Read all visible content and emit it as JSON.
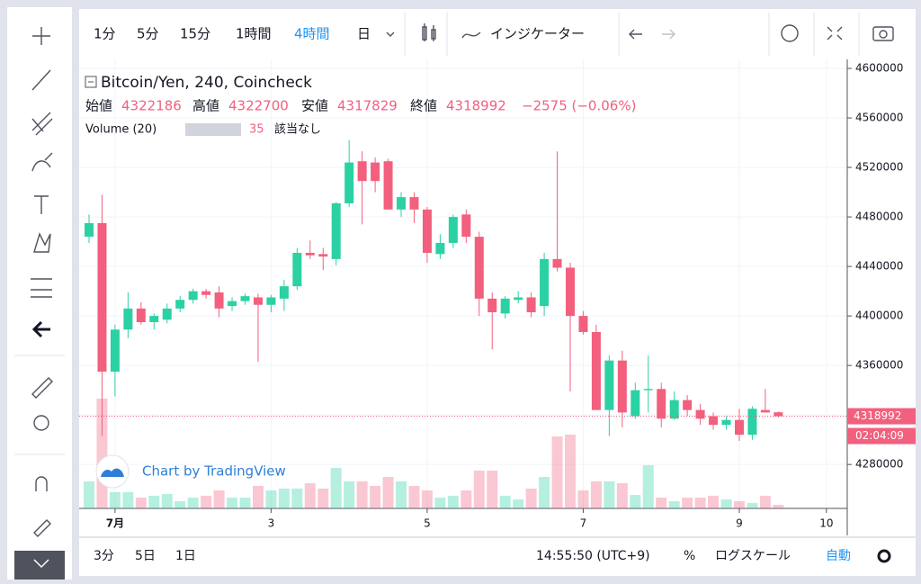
{
  "chart_data": {
    "type": "candlestick",
    "title": "Bitcoin/Yen, 240, Coincheck",
    "legend_labels": [
      "始値",
      "高値",
      "安値",
      "終値"
    ],
    "change": "−2575 (−0.06%)",
    "volume_title": "Volume (20)",
    "volume_ma": "該当なし",
    "watermark": "Chart by TradingView",
    "countdown": "02:04:09",
    "up_color": "#2bd1a3",
    "down_color": "#f2607e",
    "open": [
      4464000,
      4475000,
      4355000,
      4389000,
      4406000,
      4395000,
      4397000,
      4406000,
      4413000,
      4420000,
      4419000,
      4408000,
      4412000,
      4415000,
      4409000,
      4414000,
      4424000,
      4451000,
      4450000,
      4446000,
      4491000,
      4525000,
      4524000,
      4525000,
      4486000,
      4496000,
      4486000,
      4450000,
      4459000,
      4482000,
      4464000,
      4414000,
      4402000,
      4413000,
      4415000,
      4408000,
      4446000,
      4439000,
      4400000,
      4387000,
      4324000,
      4364000,
      4319000,
      4340000,
      4341000,
      4317000,
      4332000,
      4324000,
      4319000,
      4312000,
      4316000,
      4304000,
      4324000,
      4322186
    ],
    "high": [
      4482000,
      4498000,
      4393000,
      4419000,
      4411000,
      4402000,
      4410000,
      4416000,
      4422000,
      4422000,
      4424000,
      4415000,
      4418000,
      4418000,
      4417000,
      4429000,
      4455000,
      4461000,
      4455000,
      4492000,
      4542000,
      4533000,
      4528000,
      4527000,
      4500000,
      4500000,
      4488000,
      4466000,
      4482000,
      4486000,
      4468000,
      4419000,
      4416000,
      4420000,
      4419000,
      4451000,
      4533000,
      4443000,
      4404000,
      4393000,
      4368000,
      4372000,
      4346000,
      4368000,
      4346000,
      4339000,
      4336000,
      4329000,
      4322000,
      4319000,
      4325000,
      4327000,
      4341000,
      4322700
    ],
    "low": [
      4459000,
      4303000,
      4335000,
      4382000,
      4393000,
      4389000,
      4394000,
      4403000,
      4410000,
      4414000,
      4399000,
      4404000,
      4409000,
      4363000,
      4403000,
      4404000,
      4421000,
      4446000,
      4437000,
      4441000,
      4488000,
      4474000,
      4500000,
      4486000,
      4480000,
      4475000,
      4443000,
      4446000,
      4455000,
      4459000,
      4400000,
      4373000,
      4398000,
      4410000,
      4399000,
      4400000,
      4436000,
      4339000,
      4385000,
      4324000,
      4303000,
      4310000,
      4317000,
      4322000,
      4310000,
      4316000,
      4319000,
      4312000,
      4308000,
      4308000,
      4299000,
      4300000,
      4322000,
      4317829
    ],
    "close": [
      4475000,
      4355000,
      4389000,
      4406000,
      4395000,
      4400000,
      4406000,
      4413000,
      4420000,
      4417000,
      4406000,
      4412000,
      4416000,
      4409000,
      4415000,
      4424000,
      4451000,
      4449000,
      4448000,
      4491000,
      4524000,
      4509000,
      4509000,
      4486000,
      4496000,
      4486000,
      4451000,
      4459000,
      4480000,
      4464000,
      4414000,
      4403000,
      4414000,
      4415000,
      4403000,
      4446000,
      4439000,
      4400000,
      4387000,
      4324000,
      4364000,
      4322000,
      4340000,
      4341000,
      4317000,
      4332000,
      4324000,
      4317000,
      4312000,
      4316000,
      4304000,
      4325000,
      4322000,
      4318992
    ],
    "volume": [
      263,
      1068,
      158,
      158,
      105,
      123,
      140,
      70,
      105,
      123,
      175,
      105,
      105,
      219,
      175,
      193,
      193,
      245,
      193,
      394,
      263,
      263,
      219,
      306,
      263,
      219,
      175,
      105,
      123,
      175,
      368,
      368,
      123,
      88,
      193,
      306,
      700,
      718,
      175,
      263,
      263,
      245,
      131,
      420,
      105,
      70,
      105,
      105,
      123,
      88,
      70,
      53,
      123,
      35
    ],
    "xlim": [
      -0.76,
      58.3
    ],
    "xticks": [
      {
        "value": 2,
        "label": "7月"
      },
      {
        "value": 14,
        "label": "3"
      },
      {
        "value": 26,
        "label": "5"
      },
      {
        "value": 38,
        "label": "7"
      },
      {
        "value": 50,
        "label": "9"
      },
      {
        "value": 56.7,
        "label": "10"
      }
    ],
    "ylim": [
      4244500,
      4607300
    ],
    "yticks": [
      4280000,
      4320000,
      4360000,
      4400000,
      4440000,
      4480000,
      4520000,
      4560000,
      4600000
    ],
    "grid": true
  },
  "toolbar": {
    "intervals": [
      "1分",
      "5分",
      "15分",
      "1時間",
      "4時間",
      "日"
    ],
    "indicators": "インジケーター"
  },
  "bottom_bar": {
    "ranges": [
      "3分",
      "5日",
      "1日"
    ],
    "time": "14:55:50 (UTC+9)",
    "percent": "%",
    "log": "ログスケール",
    "auto": "自動"
  }
}
